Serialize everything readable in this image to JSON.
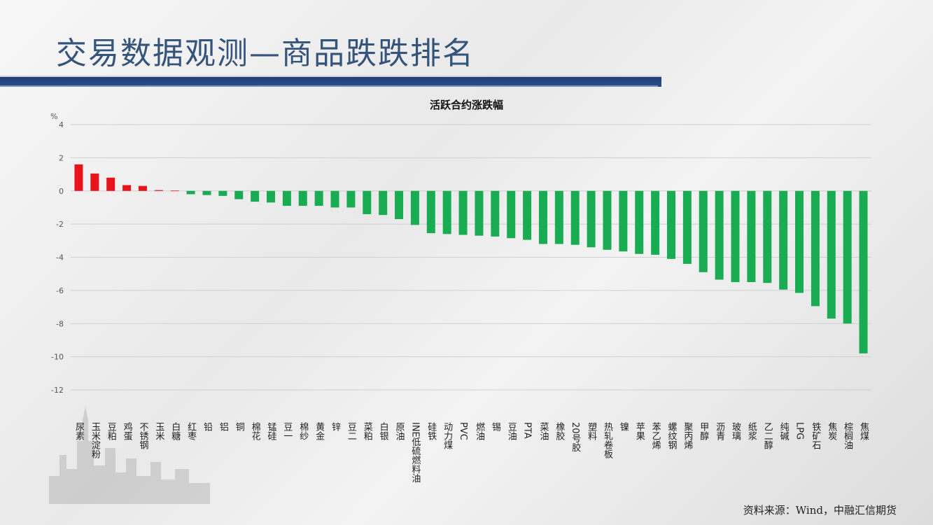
{
  "page": {
    "title": "交易数据观测—商品跌跌排名",
    "source": "资料来源：Wind，中融汇信期货"
  },
  "colors": {
    "positive": "#e8141b",
    "negative": "#1aac52",
    "title": "#34547c",
    "bar_header": "#1f3f73"
  },
  "chart_data": {
    "type": "bar",
    "title": "活跃合约涨跌幅",
    "ylabel": "%",
    "xlabel": "",
    "ylim": [
      -12,
      4
    ],
    "yticks": [
      4,
      2,
      0,
      -2,
      -4,
      -6,
      -8,
      -10,
      -12
    ],
    "grid": true,
    "categories": [
      "尿素",
      "玉米淀粉",
      "豆粕",
      "鸡蛋",
      "不锈钢",
      "玉米",
      "白糖",
      "红枣",
      "铅",
      "铝",
      "铜",
      "棉花",
      "锰硅",
      "豆一",
      "棉纱",
      "黄金",
      "锌",
      "豆二",
      "菜粕",
      "白银",
      "原油",
      "INE低硫燃料油",
      "硅铁",
      "动力煤",
      "PVC",
      "燃油",
      "锡",
      "豆油",
      "PTA",
      "菜油",
      "橡胶",
      "20号胶",
      "塑料",
      "热轧卷板",
      "镍",
      "苹果",
      "苯乙烯",
      "螺纹钢",
      "聚丙烯",
      "甲醇",
      "沥青",
      "玻璃",
      "纸浆",
      "乙二醇",
      "纯碱",
      "LPG",
      "铁矿石",
      "焦炭",
      "棕榈油",
      "焦煤"
    ],
    "values": [
      1.6,
      1.05,
      0.8,
      0.35,
      0.3,
      0.05,
      0.02,
      -0.2,
      -0.25,
      -0.3,
      -0.5,
      -0.65,
      -0.7,
      -0.9,
      -0.9,
      -0.9,
      -1.0,
      -1.0,
      -1.4,
      -1.45,
      -1.7,
      -2.05,
      -2.55,
      -2.6,
      -2.65,
      -2.7,
      -2.75,
      -2.85,
      -2.95,
      -3.2,
      -3.2,
      -3.25,
      -3.4,
      -3.55,
      -3.65,
      -3.8,
      -3.85,
      -4.1,
      -4.4,
      -4.9,
      -5.35,
      -5.5,
      -5.5,
      -5.55,
      -5.95,
      -6.15,
      -6.95,
      -7.7,
      -8.0,
      -9.8
    ]
  }
}
